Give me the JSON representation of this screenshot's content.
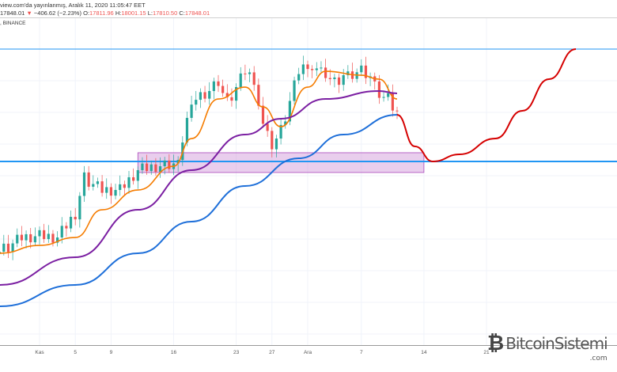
{
  "header": {
    "published": "view.com'da yayınlanmış, Aralık 11, 2020 11:05:47 EET",
    "last": "17848.01",
    "arrow": "▼",
    "change": "−406.62 (−2.23%)",
    "o_label": "O:",
    "o": "17811.96",
    "h_label": "H:",
    "h": "18001.15",
    "l_label": "L:",
    "l": "17810.50",
    "c_label": "C:",
    "c": "17848.01",
    "exchange": ", BINANCE"
  },
  "watermark": {
    "brand": "BitcoinSistemi",
    "tld": ".com"
  },
  "colors": {
    "up": "#26a69a",
    "down": "#ef5350",
    "ma_fast": "#f57c00",
    "ma_mid": "#7b1fa2",
    "ma_slow": "#1e6fd9",
    "level": "#2196f3",
    "forecast": "#d50000",
    "zone": "#ce93d8"
  },
  "chart_data": {
    "type": "line",
    "xlabel": "",
    "ylabel": "",
    "x_ticks": [
      {
        "date": "2020-11-01",
        "label": "Kas"
      },
      {
        "date": "2020-11-05",
        "label": "5"
      },
      {
        "date": "2020-11-09",
        "label": "9"
      },
      {
        "date": "2020-11-16",
        "label": "16"
      },
      {
        "date": "2020-11-23",
        "label": "23"
      },
      {
        "date": "2020-11-27",
        "label": "27"
      },
      {
        "date": "2020-12-01",
        "label": "Ara"
      },
      {
        "date": "2020-12-07",
        "label": "7"
      },
      {
        "date": "2020-12-14",
        "label": "14"
      },
      {
        "date": "2020-12-21",
        "label": "21"
      }
    ],
    "grid": true,
    "price": {
      "dates": [
        "2020-10-28",
        "2020-10-30",
        "2020-11-01",
        "2020-11-03",
        "2020-11-05",
        "2020-11-06",
        "2020-11-08",
        "2020-11-10",
        "2020-11-12",
        "2020-11-14",
        "2020-11-16",
        "2020-11-17",
        "2020-11-18",
        "2020-11-20",
        "2020-11-21",
        "2020-11-22",
        "2020-11-24",
        "2020-11-25",
        "2020-11-26",
        "2020-11-27",
        "2020-11-28",
        "2020-11-30",
        "2020-12-01",
        "2020-12-02",
        "2020-12-03",
        "2020-12-04",
        "2020-12-05",
        "2020-12-07",
        "2020-12-08",
        "2020-12-09",
        "2020-12-10",
        "2020-12-11"
      ],
      "close": [
        13524,
        13902,
        13953,
        13902,
        14658,
        15792,
        15414,
        15414,
        16044,
        16170,
        16170,
        16926,
        18312,
        18564,
        18816,
        18186,
        19194,
        18942,
        17430,
        16800,
        17304,
        19194,
        19446,
        19194,
        19068,
        18816,
        19068,
        19194,
        18942,
        18438,
        18312,
        17934
      ]
    },
    "series": [
      {
        "key": "ma_fast",
        "dates": [
          "2020-10-27",
          "2020-11-01",
          "2020-11-05",
          "2020-11-08",
          "2020-11-12",
          "2020-11-16",
          "2020-11-18",
          "2020-11-21",
          "2020-11-24",
          "2020-11-26",
          "2020-11-28",
          "2020-12-01",
          "2020-12-03",
          "2020-12-07",
          "2020-12-09",
          "2020-12-11"
        ],
        "values": [
          13400,
          13650,
          13900,
          14784,
          15414,
          16170,
          17052,
          18312,
          18690,
          18060,
          17430,
          18690,
          19194,
          19068,
          18942,
          18312
        ]
      },
      {
        "key": "ma_mid",
        "dates": [
          "2020-10-27",
          "2020-11-05",
          "2020-11-12",
          "2020-11-18",
          "2020-11-24",
          "2020-11-28",
          "2020-12-03",
          "2020-12-09",
          "2020-12-11"
        ],
        "values": [
          12390,
          13272,
          14784,
          16044,
          17178,
          17682,
          18312,
          18564,
          18488
        ]
      },
      {
        "key": "ma_slow",
        "dates": [
          "2020-10-27",
          "2020-11-05",
          "2020-11-12",
          "2020-11-18",
          "2020-11-24",
          "2020-11-30",
          "2020-12-05",
          "2020-12-11"
        ],
        "values": [
          11710,
          12390,
          13398,
          14406,
          15540,
          16422,
          17178,
          17808
        ]
      },
      {
        "key": "forecast",
        "dates": [
          "2020-12-11",
          "2020-12-13",
          "2020-12-15",
          "2020-12-18",
          "2020-12-22",
          "2020-12-25",
          "2020-12-28",
          "2020-12-31"
        ],
        "values": [
          17808,
          16800,
          16322,
          16548,
          17052,
          17934,
          18942,
          19900
        ]
      }
    ],
    "levels": [
      19900,
      16322
    ],
    "zone": {
      "from": "2020-11-12",
      "to": "2020-12-14",
      "low": 15970,
      "high": 16600
    }
  }
}
